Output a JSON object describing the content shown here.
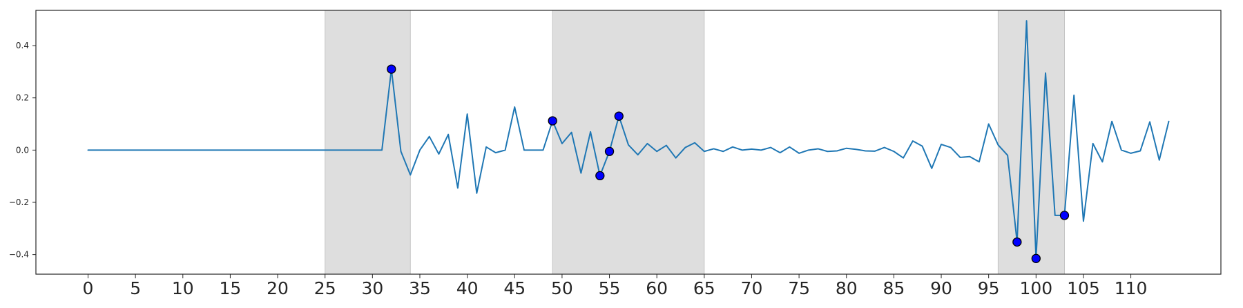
{
  "chart_data": {
    "type": "line",
    "title": "",
    "xlabel": "",
    "ylabel": "",
    "xlim": [
      -5.5,
      119.5
    ],
    "ylim": [
      -0.475,
      0.535
    ],
    "grid": false,
    "legend": "none",
    "x_ticks": [
      0,
      5,
      10,
      15,
      20,
      25,
      30,
      35,
      40,
      45,
      50,
      55,
      60,
      65,
      70,
      75,
      80,
      85,
      90,
      95,
      100,
      105,
      110
    ],
    "x_tick_labels": [
      "0",
      "5",
      "10",
      "15",
      "20",
      "25",
      "30",
      "35",
      "40",
      "45",
      "50",
      "55",
      "60",
      "65",
      "70",
      "75",
      "80",
      "85",
      "90",
      "95",
      "100",
      "105",
      "110"
    ],
    "y_ticks": [
      -0.4,
      -0.2,
      0.0,
      0.2,
      0.4
    ],
    "y_tick_labels": [
      "−0.4",
      "−0.2",
      "0.0",
      "0.2",
      "0.4"
    ],
    "shaded_regions": [
      {
        "x0": 25,
        "x1": 34
      },
      {
        "x0": 49,
        "x1": 65
      },
      {
        "x0": 96,
        "x1": 103
      }
    ],
    "series": [
      {
        "color": "#1f77b4",
        "x": [
          0,
          1,
          2,
          3,
          4,
          5,
          6,
          7,
          8,
          9,
          10,
          11,
          12,
          13,
          14,
          15,
          16,
          17,
          18,
          19,
          20,
          21,
          22,
          23,
          24,
          25,
          26,
          27,
          28,
          29,
          30,
          31,
          32,
          33,
          34,
          35,
          36,
          37,
          38,
          39,
          40,
          41,
          42,
          43,
          44,
          45,
          46,
          47,
          48,
          49,
          50,
          51,
          52,
          53,
          54,
          55,
          56,
          57,
          58,
          59,
          60,
          61,
          62,
          63,
          64,
          65,
          66,
          67,
          68,
          69,
          70,
          71,
          72,
          73,
          74,
          75,
          76,
          77,
          78,
          79,
          80,
          81,
          82,
          83,
          84,
          85,
          86,
          87,
          88,
          89,
          90,
          91,
          92,
          93,
          94,
          95,
          96,
          97,
          98,
          99,
          100,
          101,
          102,
          103,
          104,
          105,
          106,
          107,
          108,
          109,
          110,
          111,
          112,
          113,
          114
        ],
        "y": [
          0.0,
          0.0,
          0.0,
          0.0,
          0.0,
          0.0,
          0.0,
          0.0,
          0.0,
          0.0,
          0.0,
          0.0,
          0.0,
          0.0,
          0.0,
          0.0,
          0.0,
          0.0,
          0.0,
          0.0,
          0.0,
          0.0,
          0.0,
          0.0,
          0.0,
          0.0,
          0.0,
          0.0,
          0.0,
          0.0,
          0.0,
          0.0,
          0.31,
          -0.005,
          -0.095,
          0.0,
          0.052,
          -0.015,
          0.06,
          -0.145,
          0.138,
          -0.165,
          0.012,
          -0.01,
          0.0,
          0.165,
          0.0,
          0.0,
          0.0,
          0.112,
          0.025,
          0.068,
          -0.088,
          0.07,
          -0.098,
          -0.005,
          0.13,
          0.02,
          -0.018,
          0.025,
          -0.005,
          0.018,
          -0.03,
          0.01,
          0.028,
          -0.005,
          0.005,
          -0.005,
          0.012,
          0.0,
          0.004,
          0.0,
          0.01,
          -0.01,
          0.012,
          -0.012,
          0.0,
          0.005,
          -0.005,
          -0.003,
          0.007,
          0.003,
          -0.003,
          -0.004,
          0.01,
          -0.005,
          -0.03,
          0.035,
          0.015,
          -0.07,
          0.022,
          0.01,
          -0.028,
          -0.025,
          -0.045,
          0.1,
          0.02,
          -0.02,
          -0.352,
          0.495,
          -0.415,
          0.295,
          -0.25,
          -0.25,
          0.21,
          -0.272,
          0.025,
          -0.045,
          0.11,
          0.0,
          -0.012,
          -0.003,
          0.108,
          -0.038,
          0.11
        ]
      }
    ],
    "highlighted_points": {
      "fill": "#0000ff",
      "edge": "#000000",
      "points": [
        {
          "x": 32,
          "y": 0.31
        },
        {
          "x": 49,
          "y": 0.112
        },
        {
          "x": 54,
          "y": -0.098
        },
        {
          "x": 55,
          "y": -0.005
        },
        {
          "x": 56,
          "y": 0.13
        },
        {
          "x": 98,
          "y": -0.352
        },
        {
          "x": 100,
          "y": -0.415
        },
        {
          "x": 103,
          "y": -0.25
        }
      ]
    },
    "colors": {
      "shade": "#dedede",
      "shade_edge": "#c4c4c4",
      "axis": "#262626",
      "background": "#ffffff"
    }
  }
}
